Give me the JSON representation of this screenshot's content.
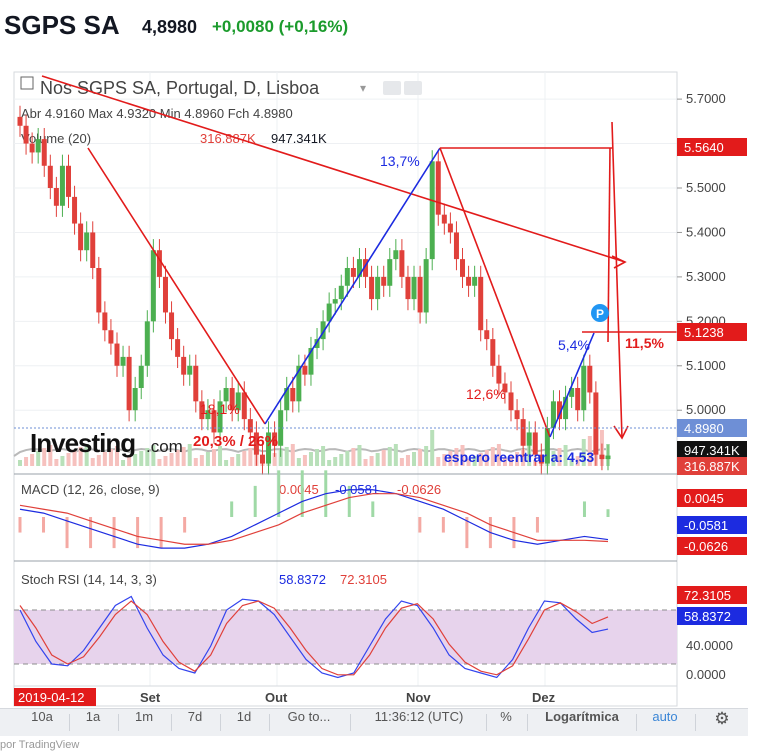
{
  "header": {
    "ticker": "SGPS SA",
    "price": "4,8980",
    "change": "+0,0080 (+0,16%)"
  },
  "legend": {
    "title": "Nos SGPS SA, Portugal, D, Lisboa",
    "ohlc": "Abr 4.9160  Max 4.9320  Min 4.8960  Fch 4.8980",
    "volume_label": "Volume (20)",
    "volume_ma": "316.887K",
    "volume_value": "947.341K",
    "macd_label": "MACD (12, 26, close, 9)",
    "macd_values": [
      "0.0045",
      "-0.0581",
      "-0.0626"
    ],
    "rsi_label": "Stoch RSI (14, 14, 3, 3)",
    "rsi_values": [
      "58.8372",
      "72.3105"
    ]
  },
  "chart_data": [
    {
      "type": "candlestick",
      "title": "Nos SGPS SA, Portugal, D, Lisboa",
      "x": [
        "2019-08-01",
        "2019-08-02",
        "2019-08-05",
        "2019-08-06",
        "2019-08-07",
        "2019-08-08",
        "2019-08-09",
        "2019-08-12",
        "2019-08-13",
        "2019-08-14",
        "2019-08-15",
        "2019-08-16",
        "2019-08-19",
        "2019-08-20",
        "2019-08-21",
        "2019-08-22",
        "2019-08-23",
        "2019-08-26",
        "2019-08-27",
        "2019-08-28",
        "2019-08-29",
        "2019-08-30",
        "2019-09-02",
        "2019-09-03",
        "2019-09-04",
        "2019-09-05",
        "2019-09-06",
        "2019-09-09",
        "2019-09-10",
        "2019-09-11",
        "2019-09-12",
        "2019-09-13",
        "2019-09-16",
        "2019-09-17",
        "2019-09-18",
        "2019-09-19",
        "2019-09-20",
        "2019-09-23",
        "2019-09-24",
        "2019-09-25",
        "2019-09-26",
        "2019-09-27",
        "2019-09-30",
        "2019-10-01",
        "2019-10-02",
        "2019-10-03",
        "2019-10-04",
        "2019-10-07",
        "2019-10-08",
        "2019-10-09",
        "2019-10-10",
        "2019-10-11",
        "2019-10-14",
        "2019-10-15",
        "2019-10-16",
        "2019-10-17",
        "2019-10-18",
        "2019-10-21",
        "2019-10-22",
        "2019-10-23",
        "2019-10-24",
        "2019-10-25",
        "2019-10-28",
        "2019-10-29",
        "2019-10-30",
        "2019-10-31",
        "2019-11-01",
        "2019-11-04",
        "2019-11-05",
        "2019-11-06",
        "2019-11-07",
        "2019-11-08",
        "2019-11-11",
        "2019-11-12",
        "2019-11-13",
        "2019-11-14",
        "2019-11-15",
        "2019-11-18",
        "2019-11-19",
        "2019-11-20",
        "2019-11-21",
        "2019-11-22",
        "2019-11-25",
        "2019-11-26",
        "2019-11-27",
        "2019-11-28",
        "2019-11-29",
        "2019-12-02",
        "2019-12-03",
        "2019-12-04",
        "2019-12-05",
        "2019-12-06",
        "2019-12-09",
        "2019-12-10",
        "2019-12-11",
        "2019-12-12",
        "2019-12-13",
        "2019-12-16"
      ],
      "close": [
        5.64,
        5.6,
        5.58,
        5.61,
        5.55,
        5.5,
        5.46,
        5.55,
        5.48,
        5.42,
        5.36,
        5.4,
        5.32,
        5.22,
        5.18,
        5.15,
        5.1,
        5.12,
        5.0,
        5.05,
        5.1,
        5.2,
        5.36,
        5.3,
        5.22,
        5.16,
        5.12,
        5.08,
        5.1,
        5.02,
        4.98,
        5.0,
        4.95,
        5.02,
        5.05,
        5.0,
        5.04,
        4.98,
        4.95,
        4.9,
        4.88,
        4.95,
        4.92,
        5.0,
        5.05,
        5.02,
        5.1,
        5.08,
        5.14,
        5.16,
        5.2,
        5.24,
        5.25,
        5.28,
        5.32,
        5.3,
        5.34,
        5.3,
        5.25,
        5.3,
        5.28,
        5.34,
        5.36,
        5.3,
        5.25,
        5.3,
        5.22,
        5.34,
        5.56,
        5.44,
        5.42,
        5.4,
        5.34,
        5.3,
        5.28,
        5.3,
        5.18,
        5.16,
        5.1,
        5.06,
        5.04,
        5.0,
        4.98,
        4.92,
        4.95,
        4.9,
        4.88,
        4.96,
        5.02,
        4.98,
        5.03,
        5.05,
        5.0,
        5.1,
        5.04,
        4.9,
        4.89,
        4.898
      ],
      "ylim": [
        4.98,
        5.75
      ],
      "yticks": [
        5.0,
        5.1,
        5.2,
        5.3,
        5.4,
        5.5,
        5.6,
        5.7
      ],
      "axis_labels": [
        "2019-04-12",
        "Set",
        "Out",
        "Nov",
        "Dez"
      ],
      "price_tags": [
        "5.5640",
        "5.1238",
        "4.8980",
        "947.341K",
        "316.887K"
      ],
      "annotations": [
        "13,7%",
        "18,1%",
        "20,3% / 26%",
        "12,6%",
        "5,4%",
        "11,5%",
        "espero reentrar a: 4,53"
      ]
    },
    {
      "type": "line",
      "title": "MACD (12, 26, close, 9)",
      "series": [
        {
          "name": "MACD",
          "values": [
            0.02,
            0.01,
            -0.01,
            -0.03,
            -0.05,
            -0.07,
            -0.08,
            -0.08,
            -0.07,
            -0.05,
            -0.02,
            0.01,
            0.04,
            0.06,
            0.07,
            0.07,
            0.06,
            0.04,
            0.02,
            -0.01,
            -0.04,
            -0.06,
            -0.07,
            -0.06,
            -0.05,
            -0.058
          ]
        },
        {
          "name": "Signal",
          "values": [
            0.03,
            0.02,
            0.01,
            -0.01,
            -0.03,
            -0.05,
            -0.06,
            -0.07,
            -0.07,
            -0.06,
            -0.04,
            -0.02,
            0.01,
            0.03,
            0.05,
            0.06,
            0.06,
            0.05,
            0.03,
            0.01,
            -0.02,
            -0.04,
            -0.06,
            -0.06,
            -0.06,
            -0.063
          ]
        }
      ],
      "price_tags": [
        "0.0045",
        "-0.0581",
        "-0.0626"
      ]
    },
    {
      "type": "line",
      "title": "Stoch RSI (14, 14, 3, 3)",
      "series": [
        {
          "name": "K",
          "values": [
            80,
            45,
            20,
            18,
            35,
            60,
            85,
            95,
            60,
            30,
            15,
            10,
            40,
            80,
            92,
            90,
            75,
            50,
            25,
            10,
            5,
            10,
            40,
            70,
            90,
            85,
            60,
            30,
            15,
            10,
            5,
            25,
            60,
            90,
            88,
            70,
            55,
            58.8
          ]
        },
        {
          "name": "D",
          "values": [
            85,
            60,
            30,
            20,
            28,
            50,
            75,
            90,
            75,
            45,
            22,
            12,
            30,
            65,
            85,
            90,
            82,
            60,
            35,
            15,
            8,
            8,
            30,
            60,
            82,
            87,
            70,
            42,
            22,
            12,
            8,
            18,
            48,
            80,
            88,
            78,
            65,
            72.3
          ]
        }
      ],
      "ylim": [
        0,
        100
      ],
      "yticks": [
        "0.0000",
        "40.0000"
      ],
      "price_tags": [
        "72.3105",
        "58.8372"
      ]
    }
  ],
  "toolbar": {
    "items": [
      "10a",
      "1a",
      "1m",
      "7d",
      "1d",
      "Go to...",
      "11:36:12 (UTC)",
      "%",
      "Logarítmica",
      "auto"
    ]
  },
  "footer": {
    "text": "por TradingView"
  },
  "logo": {
    "text": "Investing",
    "suffix": ".com"
  },
  "colors": {
    "up": "#4caf50",
    "down": "#e0403a",
    "blue": "#1c2be0",
    "red": "#e21b1b",
    "rsi_band": "#e7d3ec"
  }
}
